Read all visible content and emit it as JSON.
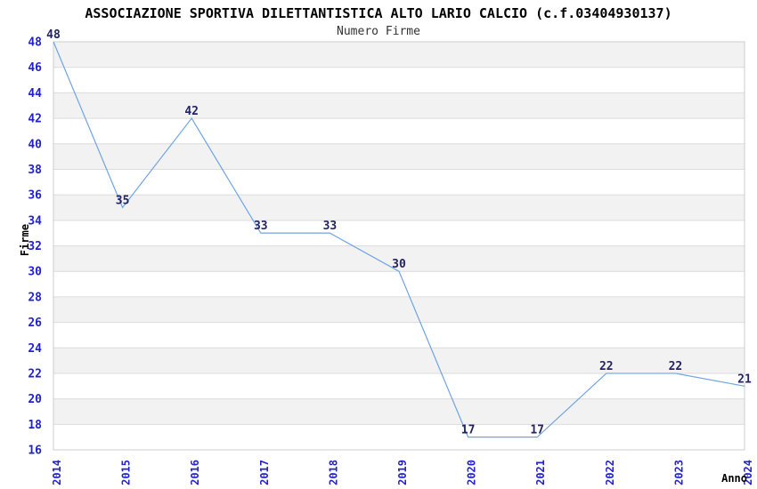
{
  "chart_data": {
    "type": "line",
    "title": "ASSOCIAZIONE SPORTIVA DILETTANTISTICA ALTO LARIO CALCIO (c.f.03404930137)",
    "subtitle": "Numero Firme",
    "xlabel": "Anno",
    "ylabel": "Firme",
    "categories": [
      "2014",
      "2015",
      "2016",
      "2017",
      "2018",
      "2019",
      "2020",
      "2021",
      "2022",
      "2023",
      "2024"
    ],
    "values": [
      48,
      35,
      42,
      33,
      33,
      30,
      17,
      17,
      22,
      22,
      21
    ],
    "ylim": [
      16,
      48
    ],
    "ytick_step": 2,
    "grid": "horizontal",
    "legend": "none",
    "data_labels": true,
    "style": {
      "line_color": "#6ea4e2",
      "tick_label_color": "#2222cb",
      "data_label_color": "#232363",
      "band_color": "#f2f2f2",
      "grid_color": "#dcdcdc",
      "border_color": "#cdcdcd",
      "title_color": "#000000",
      "subtitle_color": "#333333",
      "axis_title_color": "#000000",
      "background": "#ffffff"
    }
  }
}
